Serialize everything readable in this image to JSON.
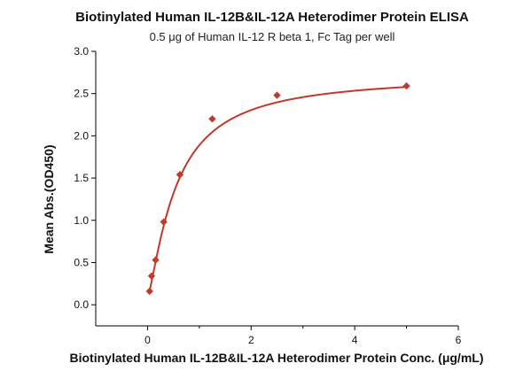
{
  "chart_data": {
    "type": "scatter",
    "title": "Biotinylated Human IL-12B&IL-12A Heterodimer Protein ELISA",
    "subtitle": "0.5 μg of Human IL-12 R beta 1, Fc Tag per well",
    "xlabel": "Biotinylated Human IL-12B&IL-12A Heterodimer Protein Conc. (μg/mL)",
    "ylabel": "Mean Abs.(OD450)",
    "xlim": [
      -1,
      6
    ],
    "ylim": [
      -0.25,
      3.0
    ],
    "xticks": [
      0,
      2,
      4,
      6
    ],
    "xticks_minor": [
      1,
      3,
      5
    ],
    "yticks": [
      0.0,
      0.5,
      1.0,
      1.5,
      2.0,
      2.5,
      3.0
    ],
    "ytick_labels": [
      "0.0",
      "0.5",
      "1.0",
      "1.5",
      "2.0",
      "2.5",
      "3.0"
    ],
    "grid": false,
    "color": "#c0392b",
    "marker": "diamond",
    "series": [
      {
        "x": [
          0.039,
          0.078,
          0.156,
          0.313,
          0.625,
          1.25,
          2.5,
          5.0
        ],
        "y": [
          0.16,
          0.34,
          0.53,
          0.98,
          1.54,
          2.2,
          2.48,
          2.59
        ]
      }
    ],
    "fit": {
      "type": "4PL",
      "bottom": 0.08,
      "top": 2.72,
      "ec50": 0.55,
      "hill": 1.3
    }
  }
}
